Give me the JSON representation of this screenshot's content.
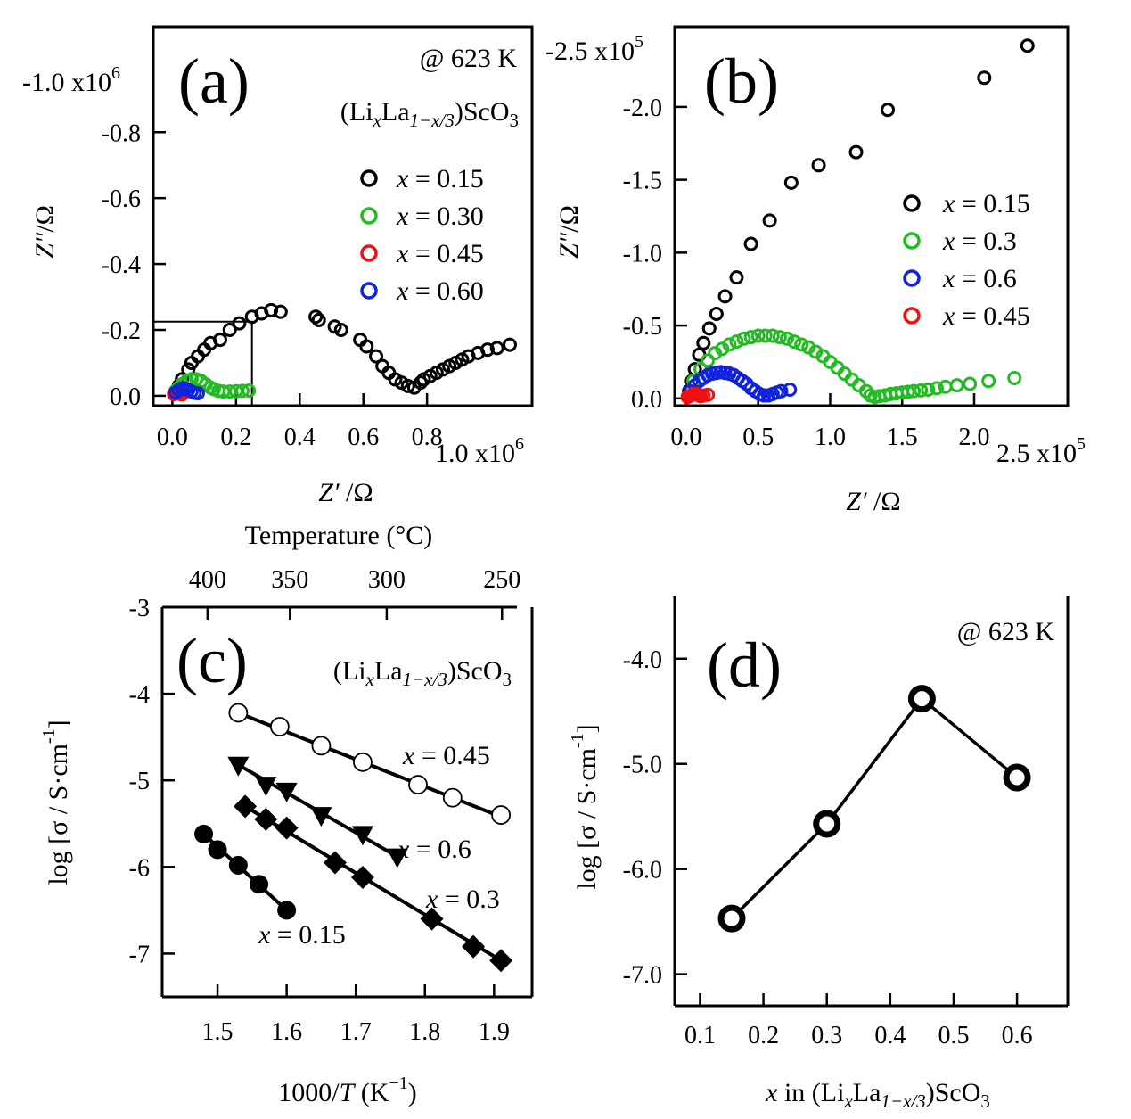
{
  "chart_data": [
    {
      "panel": "a",
      "type": "scatter",
      "panel_label": "(a)",
      "annotation_temp": "@ 623 K",
      "annotation_formula": {
        "pre": "(Li",
        "x": "x",
        "mid": "La",
        "sub": "1−x/3",
        "post": ")ScO",
        "three": "3"
      },
      "xlabel": {
        "italic": "Z′",
        "rest": " /Ω"
      },
      "ylabel": {
        "italic": "Z″",
        "rest": "/Ω"
      },
      "xlim": [
        -0.06,
        1.13
      ],
      "ylim": [
        0.03,
        -1.12
      ],
      "x_ticks": [
        0.0,
        0.2,
        0.4,
        0.6,
        0.8
      ],
      "x_tick_labels": [
        "0.0",
        "0.2",
        "0.4",
        "0.6",
        "0.8"
      ],
      "x_scale_label": {
        "base": "1.0 x10",
        "exp": "6"
      },
      "y_ticks": [
        0.0,
        -0.2,
        -0.4,
        -0.6,
        -0.8
      ],
      "y_tick_labels": [
        "0.0",
        "-0.2",
        "-0.4",
        "-0.6",
        "-0.8"
      ],
      "y_scale_label": {
        "base": "-1.0 x10",
        "exp": "6"
      },
      "inset_box": {
        "x_max": 0.25,
        "y_min": -0.225
      },
      "series": [
        {
          "name": "x = 0.15",
          "legend_x": "x",
          "legend_rest": " = 0.15",
          "color": "#000000",
          "x": [
            0.01,
            0.02,
            0.03,
            0.05,
            0.06,
            0.08,
            0.1,
            0.12,
            0.15,
            0.18,
            0.21,
            0.25,
            0.28,
            0.31,
            0.34,
            0.45,
            0.46,
            0.51,
            0.53,
            0.59,
            0.61,
            0.64,
            0.66,
            0.68,
            0.7,
            0.72,
            0.74,
            0.76,
            0.78,
            0.79,
            0.81,
            0.83,
            0.85,
            0.87,
            0.89,
            0.91,
            0.93,
            0.96,
            0.99,
            1.02,
            1.06
          ],
          "y": [
            -0.01,
            -0.03,
            -0.05,
            -0.08,
            -0.1,
            -0.12,
            -0.14,
            -0.16,
            -0.17,
            -0.2,
            -0.22,
            -0.24,
            -0.25,
            -0.26,
            -0.255,
            -0.24,
            -0.23,
            -0.21,
            -0.2,
            -0.17,
            -0.15,
            -0.12,
            -0.09,
            -0.07,
            -0.05,
            -0.04,
            -0.03,
            -0.025,
            -0.04,
            -0.05,
            -0.06,
            -0.07,
            -0.08,
            -0.09,
            -0.1,
            -0.11,
            -0.12,
            -0.13,
            -0.14,
            -0.145,
            -0.155
          ]
        },
        {
          "name": "x = 0.30",
          "legend_x": "x",
          "legend_rest": " = 0.30",
          "color": "#22bb22",
          "x": [
            0.01,
            0.02,
            0.03,
            0.045,
            0.06,
            0.075,
            0.09,
            0.105,
            0.12,
            0.13,
            0.145,
            0.16,
            0.18,
            0.2,
            0.22,
            0.24
          ],
          "y": [
            -0.015,
            -0.025,
            -0.035,
            -0.045,
            -0.05,
            -0.05,
            -0.045,
            -0.035,
            -0.025,
            -0.02,
            -0.015,
            -0.013,
            -0.013,
            -0.014,
            -0.015,
            -0.016
          ]
        },
        {
          "name": "x = 0.45",
          "legend_x": "x",
          "legend_rest": " = 0.45",
          "color": "#ee1111",
          "x": [
            0.005,
            0.01,
            0.015,
            0.02,
            0.025,
            0.03
          ],
          "y": [
            -0.005,
            -0.008,
            -0.009,
            -0.008,
            -0.006,
            -0.004
          ]
        },
        {
          "name": "x = 0.60",
          "legend_x": "x",
          "legend_rest": " = 0.60",
          "color": "#1122dd",
          "x": [
            0.01,
            0.02,
            0.03,
            0.04,
            0.05,
            0.06,
            0.07,
            0.08
          ],
          "y": [
            -0.01,
            -0.017,
            -0.022,
            -0.022,
            -0.018,
            -0.013,
            -0.009,
            -0.008
          ]
        }
      ]
    },
    {
      "panel": "b",
      "type": "scatter",
      "panel_label": "(b)",
      "xlabel": {
        "italic": "Z′",
        "rest": " /Ω"
      },
      "ylabel": {
        "italic": "Z″",
        "rest": "/Ω"
      },
      "xlim": [
        -0.08,
        2.65
      ],
      "ylim": [
        0.05,
        -2.55
      ],
      "x_ticks": [
        0.0,
        0.5,
        1.0,
        1.5,
        2.0
      ],
      "x_tick_labels": [
        "0.0",
        "0.5",
        "1.0",
        "1.5",
        "2.0"
      ],
      "x_scale_label": {
        "base": "2.5 x10",
        "exp": "5"
      },
      "y_ticks": [
        0.0,
        -0.5,
        -1.0,
        -1.5,
        -2.0
      ],
      "y_tick_labels": [
        "0.0",
        "-0.5",
        "-1.0",
        "-1.5",
        "-2.0"
      ],
      "y_scale_label": {
        "base": "-2.5 x10",
        "exp": "5"
      },
      "series": [
        {
          "name": "x = 0.15",
          "legend_x": "x",
          "legend_rest": " = 0.15",
          "color": "#000000",
          "x": [
            0.02,
            0.04,
            0.06,
            0.09,
            0.12,
            0.16,
            0.21,
            0.27,
            0.35,
            0.45,
            0.58,
            0.73,
            0.92,
            1.18,
            1.4,
            2.07,
            2.37
          ],
          "y": [
            -0.05,
            -0.12,
            -0.2,
            -0.3,
            -0.38,
            -0.48,
            -0.58,
            -0.7,
            -0.83,
            -1.06,
            -1.22,
            -1.48,
            -1.6,
            -1.69,
            -1.98,
            -2.2,
            -2.42
          ]
        },
        {
          "name": "x = 0.3",
          "legend_x": "x",
          "legend_rest": " = 0.3",
          "color": "#22bb22",
          "x": [
            0.05,
            0.1,
            0.15,
            0.2,
            0.25,
            0.3,
            0.35,
            0.4,
            0.45,
            0.5,
            0.55,
            0.6,
            0.65,
            0.7,
            0.75,
            0.8,
            0.85,
            0.9,
            0.95,
            1.0,
            1.05,
            1.1,
            1.15,
            1.2,
            1.25,
            1.28,
            1.31,
            1.34,
            1.38,
            1.42,
            1.46,
            1.5,
            1.54,
            1.58,
            1.63,
            1.68,
            1.74,
            1.8,
            1.88,
            1.97,
            2.1,
            2.28
          ],
          "y": [
            -0.12,
            -0.2,
            -0.26,
            -0.31,
            -0.34,
            -0.37,
            -0.39,
            -0.41,
            -0.42,
            -0.43,
            -0.43,
            -0.43,
            -0.42,
            -0.41,
            -0.39,
            -0.37,
            -0.35,
            -0.32,
            -0.29,
            -0.25,
            -0.21,
            -0.17,
            -0.13,
            -0.09,
            -0.05,
            -0.02,
            -0.01,
            -0.015,
            -0.02,
            -0.03,
            -0.035,
            -0.04,
            -0.045,
            -0.05,
            -0.055,
            -0.06,
            -0.07,
            -0.08,
            -0.09,
            -0.1,
            -0.12,
            -0.14
          ]
        },
        {
          "name": "x = 0.6",
          "legend_x": "x",
          "legend_rest": " = 0.6",
          "color": "#1122dd",
          "x": [
            0.03,
            0.06,
            0.09,
            0.12,
            0.15,
            0.18,
            0.21,
            0.24,
            0.27,
            0.3,
            0.33,
            0.36,
            0.39,
            0.42,
            0.45,
            0.48,
            0.51,
            0.54,
            0.57,
            0.6,
            0.63,
            0.66,
            0.72
          ],
          "y": [
            -0.05,
            -0.09,
            -0.12,
            -0.14,
            -0.16,
            -0.17,
            -0.175,
            -0.18,
            -0.175,
            -0.17,
            -0.16,
            -0.14,
            -0.12,
            -0.1,
            -0.07,
            -0.05,
            -0.03,
            -0.02,
            -0.02,
            -0.03,
            -0.04,
            -0.05,
            -0.06
          ]
        },
        {
          "name": "x = 0.45",
          "legend_x": "x",
          "legend_rest": " = 0.45",
          "color": "#ee1111",
          "x": [
            0.01,
            0.02,
            0.03,
            0.04,
            0.05,
            0.06,
            0.07,
            0.08,
            0.09,
            0.1,
            0.12,
            0.15
          ],
          "y": [
            -0.01,
            -0.015,
            -0.02,
            -0.025,
            -0.03,
            -0.03,
            -0.03,
            -0.025,
            -0.02,
            -0.015,
            -0.02,
            -0.025
          ]
        }
      ]
    },
    {
      "panel": "c",
      "type": "scatter",
      "panel_label": "(c)",
      "annotation_formula": {
        "pre": "(Li",
        "x": "x",
        "mid": "La",
        "sub": "1−x/3",
        "post": ")ScO",
        "three": "3"
      },
      "xlabel": {
        "pre": "1000/",
        "italic": "T",
        "mid": " (K",
        "exp": "−1",
        "post": ")"
      },
      "ylabel": {
        "pre": "log [σ / S·cm",
        "exp": "-1",
        "post": "]"
      },
      "top_xlabel": "Temperature (°C)",
      "xlim": [
        1.42,
        1.955
      ],
      "ylim": [
        -7.5,
        -3.0
      ],
      "x_ticks": [
        1.5,
        1.6,
        1.7,
        1.8,
        1.9
      ],
      "x_tick_labels": [
        "1.5",
        "1.6",
        "1.7",
        "1.8",
        "1.9"
      ],
      "y_ticks": [
        -3,
        -4,
        -5,
        -6,
        -7
      ],
      "y_tick_labels": [
        "-3",
        "-4",
        "-5",
        "-6",
        "-7"
      ],
      "top_ticks_celsius": [
        400,
        350,
        300,
        250
      ],
      "top_tick_labels": [
        "400",
        "350",
        "300",
        "250"
      ],
      "series": [
        {
          "name": "x = 0.45",
          "label_x": "x",
          "label_rest": " = 0.45",
          "marker": "open-circle",
          "x": [
            1.53,
            1.59,
            1.65,
            1.71,
            1.79,
            1.84,
            1.91
          ],
          "y": [
            -4.22,
            -4.38,
            -4.6,
            -4.79,
            -5.05,
            -5.2,
            -5.4
          ],
          "fit": [
            [
              1.53,
              -4.22
            ],
            [
              1.91,
              -5.42
            ]
          ]
        },
        {
          "name": "x = 0.6",
          "label_x": "x",
          "label_rest": " = 0.6",
          "marker": "triangle-down",
          "x": [
            1.53,
            1.57,
            1.6,
            1.65,
            1.71,
            1.76
          ],
          "y": [
            -4.82,
            -5.05,
            -5.12,
            -5.4,
            -5.62,
            -5.88
          ],
          "fit": [
            [
              1.53,
              -4.82
            ],
            [
              1.76,
              -5.88
            ]
          ]
        },
        {
          "name": "x = 0.3",
          "label_x": "x",
          "label_rest": " = 0.3",
          "marker": "diamond",
          "x": [
            1.54,
            1.57,
            1.6,
            1.67,
            1.71,
            1.81,
            1.87,
            1.91
          ],
          "y": [
            -5.3,
            -5.45,
            -5.55,
            -5.95,
            -6.12,
            -6.6,
            -6.92,
            -7.08
          ],
          "fit": [
            [
              1.54,
              -5.3
            ],
            [
              1.91,
              -7.08
            ]
          ]
        },
        {
          "name": "x = 0.15",
          "label_x": "x",
          "label_rest": " = 0.15",
          "marker": "filled-circle",
          "x": [
            1.48,
            1.5,
            1.53,
            1.56,
            1.6
          ],
          "y": [
            -5.62,
            -5.8,
            -5.98,
            -6.2,
            -6.5
          ],
          "fit": [
            [
              1.48,
              -5.62
            ],
            [
              1.6,
              -6.5
            ]
          ]
        }
      ]
    },
    {
      "panel": "d",
      "type": "line",
      "panel_label": "(d)",
      "annotation_temp": "@ 623 K",
      "xlabel": {
        "italic": "x",
        "pre": " in (Li",
        "x2": "x",
        "mid": "La",
        "sub": "1−x/3",
        "post": ")ScO",
        "three": "3"
      },
      "ylabel": {
        "pre": "log [σ / S·cm",
        "exp": "-1",
        "post": "]"
      },
      "xlim": [
        0.06,
        0.68
      ],
      "ylim": [
        -7.3,
        -3.4
      ],
      "x_ticks": [
        0.1,
        0.2,
        0.3,
        0.4,
        0.5,
        0.6
      ],
      "x_tick_labels": [
        "0.1",
        "0.2",
        "0.3",
        "0.4",
        "0.5",
        "0.6"
      ],
      "y_ticks": [
        -4.0,
        -5.0,
        -6.0,
        -7.0
      ],
      "y_tick_labels": [
        "-4.0",
        "-5.0",
        "-6.0",
        "-7.0"
      ],
      "x": [
        0.15,
        0.3,
        0.45,
        0.6
      ],
      "y": [
        -6.47,
        -5.57,
        -4.38,
        -5.13
      ]
    }
  ]
}
